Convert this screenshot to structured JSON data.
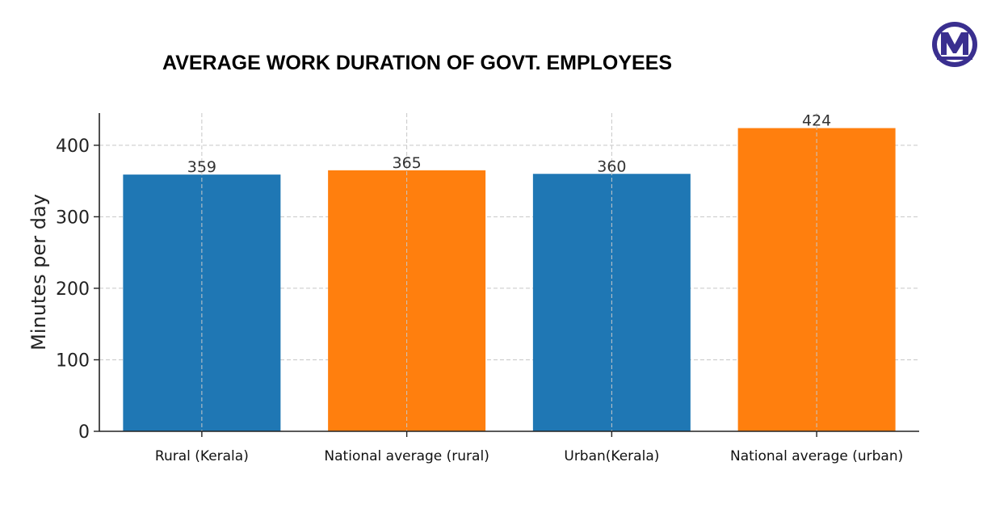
{
  "title": "AVERAGE WORK DURATION OF GOVT. EMPLOYEES",
  "logo": {
    "letter": "M",
    "ring_color": "#3a2f8f",
    "bg_color": "#ffffff",
    "icon": "brand-logo-icon"
  },
  "chart_data": {
    "type": "bar",
    "title": "AVERAGE WORK DURATION OF GOVT. EMPLOYEES",
    "xlabel": "",
    "ylabel": "Minutes per day",
    "categories": [
      "Rural (Kerala)",
      "National average (rural)",
      "Urban(Kerala)",
      "National average (urban)"
    ],
    "values": [
      359,
      365,
      360,
      424
    ],
    "value_labels": [
      "359",
      "365",
      "360",
      "424"
    ],
    "bar_colors": [
      "#1f77b4",
      "#ff7f0e",
      "#1f77b4",
      "#ff7f0e"
    ],
    "yticks": [
      0,
      100,
      200,
      300,
      400
    ],
    "ytick_labels": [
      "0",
      "100",
      "200",
      "300",
      "400"
    ],
    "ylim": [
      0,
      445
    ],
    "grid": true,
    "legend": "none"
  }
}
